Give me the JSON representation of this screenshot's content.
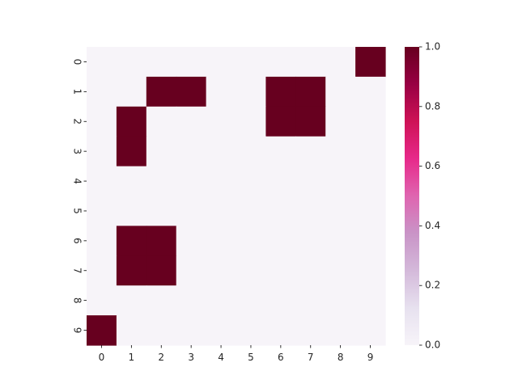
{
  "chart_data": {
    "type": "heatmap",
    "title": "",
    "xlabel": "",
    "ylabel": "",
    "x_labels": [
      "0",
      "1",
      "2",
      "3",
      "4",
      "5",
      "6",
      "7",
      "8",
      "9"
    ],
    "y_labels": [
      "0",
      "1",
      "2",
      "3",
      "4",
      "5",
      "6",
      "7",
      "8",
      "9"
    ],
    "values": [
      [
        0,
        0,
        0,
        0,
        0,
        0,
        0,
        0,
        0,
        1
      ],
      [
        0,
        0,
        1,
        1,
        0,
        0,
        1,
        1,
        0,
        0
      ],
      [
        0,
        1,
        0,
        0,
        0,
        0,
        1,
        1,
        0,
        0
      ],
      [
        0,
        1,
        0,
        0,
        0,
        0,
        0,
        0,
        0,
        0
      ],
      [
        0,
        0,
        0,
        0,
        0,
        0,
        0,
        0,
        0,
        0
      ],
      [
        0,
        0,
        0,
        0,
        0,
        0,
        0,
        0,
        0,
        0
      ],
      [
        0,
        1,
        1,
        0,
        0,
        0,
        0,
        0,
        0,
        0
      ],
      [
        0,
        1,
        1,
        0,
        0,
        0,
        0,
        0,
        0,
        0
      ],
      [
        0,
        0,
        0,
        0,
        0,
        0,
        0,
        0,
        0,
        0
      ],
      [
        1,
        0,
        0,
        0,
        0,
        0,
        0,
        0,
        0,
        0
      ]
    ],
    "vmin": 0,
    "vmax": 1,
    "colormap": "PuRd",
    "colorbar": {
      "ticks": [
        0.0,
        0.2,
        0.4,
        0.6,
        0.8,
        1.0
      ],
      "tick_labels": [
        "0.0",
        "0.2",
        "0.4",
        "0.6",
        "0.8",
        "1.0"
      ],
      "color_stops": [
        "#f7f4f9",
        "#e7e1ef",
        "#d4b9da",
        "#c994c7",
        "#df65b0",
        "#e7298a",
        "#ce1256",
        "#980043",
        "#67001f"
      ]
    },
    "grid": false,
    "legend": "none"
  }
}
